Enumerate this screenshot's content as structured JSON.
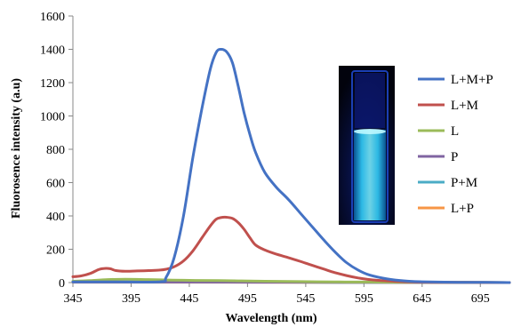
{
  "chart_data": {
    "type": "line",
    "title": "",
    "xlabel": "Wavelength (nm)",
    "ylabel": "Fluorosence intensity (a.u)",
    "xlim": [
      345,
      720
    ],
    "ylim": [
      0,
      1600
    ],
    "xticks": [
      "345",
      "395",
      "445",
      "495",
      "545",
      "595",
      "645",
      "695"
    ],
    "yticks": [
      "0",
      "200",
      "400",
      "600",
      "800",
      "1000",
      "1200",
      "1400",
      "1600"
    ],
    "grid": false,
    "legend_position": "right",
    "inset": "fluorescing cuvette photo",
    "series": [
      {
        "name": "L+M+P",
        "color": "#4472C4",
        "points": [
          [
            345,
            4
          ],
          [
            380,
            4
          ],
          [
            420,
            5
          ],
          [
            425,
            30
          ],
          [
            432,
            150
          ],
          [
            440,
            400
          ],
          [
            448,
            750
          ],
          [
            456,
            1050
          ],
          [
            463,
            1280
          ],
          [
            468,
            1380
          ],
          [
            472,
            1400
          ],
          [
            477,
            1385
          ],
          [
            482,
            1320
          ],
          [
            487,
            1180
          ],
          [
            492,
            1020
          ],
          [
            497,
            890
          ],
          [
            502,
            780
          ],
          [
            510,
            660
          ],
          [
            520,
            570
          ],
          [
            530,
            500
          ],
          [
            540,
            420
          ],
          [
            550,
            340
          ],
          [
            560,
            260
          ],
          [
            570,
            185
          ],
          [
            580,
            120
          ],
          [
            590,
            75
          ],
          [
            600,
            45
          ],
          [
            615,
            22
          ],
          [
            630,
            10
          ],
          [
            645,
            5
          ],
          [
            670,
            2
          ],
          [
            700,
            1
          ],
          [
            720,
            0
          ]
        ]
      },
      {
        "name": "L+M",
        "color": "#C0504D",
        "points": [
          [
            345,
            35
          ],
          [
            352,
            40
          ],
          [
            360,
            55
          ],
          [
            367,
            78
          ],
          [
            372,
            85
          ],
          [
            377,
            83
          ],
          [
            382,
            72
          ],
          [
            390,
            68
          ],
          [
            400,
            70
          ],
          [
            410,
            72
          ],
          [
            420,
            75
          ],
          [
            425,
            80
          ],
          [
            432,
            95
          ],
          [
            440,
            130
          ],
          [
            448,
            190
          ],
          [
            456,
            270
          ],
          [
            463,
            340
          ],
          [
            468,
            380
          ],
          [
            472,
            390
          ],
          [
            477,
            392
          ],
          [
            482,
            385
          ],
          [
            487,
            360
          ],
          [
            492,
            320
          ],
          [
            497,
            270
          ],
          [
            502,
            225
          ],
          [
            510,
            195
          ],
          [
            520,
            170
          ],
          [
            530,
            150
          ],
          [
            540,
            128
          ],
          [
            550,
            105
          ],
          [
            560,
            82
          ],
          [
            570,
            60
          ],
          [
            580,
            42
          ],
          [
            590,
            28
          ],
          [
            600,
            18
          ],
          [
            615,
            10
          ],
          [
            630,
            5
          ],
          [
            650,
            2
          ],
          [
            680,
            1
          ],
          [
            720,
            0
          ]
        ]
      },
      {
        "name": "L",
        "color": "#9BBB59",
        "points": [
          [
            345,
            8
          ],
          [
            360,
            12
          ],
          [
            375,
            18
          ],
          [
            390,
            20
          ],
          [
            410,
            18
          ],
          [
            430,
            15
          ],
          [
            450,
            13
          ],
          [
            470,
            12
          ],
          [
            490,
            10
          ],
          [
            510,
            8
          ],
          [
            540,
            6
          ],
          [
            570,
            4
          ],
          [
            600,
            3
          ],
          [
            640,
            2
          ],
          [
            680,
            1
          ],
          [
            720,
            0
          ]
        ]
      },
      {
        "name": "P",
        "color": "#8064A2",
        "points": [
          [
            345,
            3
          ],
          [
            400,
            3
          ],
          [
            450,
            3
          ],
          [
            500,
            2
          ],
          [
            550,
            2
          ],
          [
            600,
            1
          ],
          [
            650,
            1
          ],
          [
            720,
            0
          ]
        ]
      },
      {
        "name": "P+M",
        "color": "#4BACC6",
        "points": [
          [
            345,
            4
          ],
          [
            400,
            4
          ],
          [
            450,
            4
          ],
          [
            500,
            3
          ],
          [
            550,
            2
          ],
          [
            600,
            1
          ],
          [
            650,
            1
          ],
          [
            720,
            0
          ]
        ]
      },
      {
        "name": "L+P",
        "color": "#F79646",
        "points": [
          [
            345,
            2
          ],
          [
            400,
            2
          ],
          [
            450,
            2
          ],
          [
            500,
            2
          ],
          [
            550,
            1
          ],
          [
            600,
            1
          ],
          [
            650,
            0
          ],
          [
            720,
            0
          ]
        ]
      }
    ]
  }
}
